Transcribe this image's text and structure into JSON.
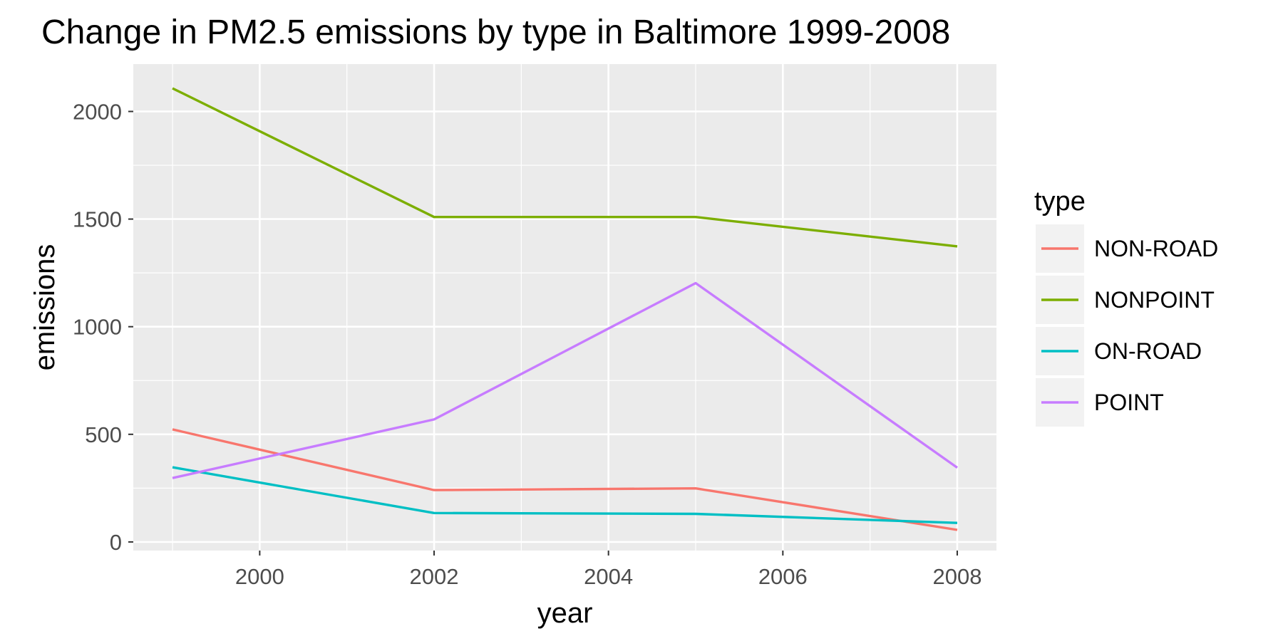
{
  "chart_data": {
    "type": "line",
    "title": "Change in PM2.5 emissions by type in Baltimore 1999-2008",
    "xlabel": "year",
    "ylabel": "emissions",
    "x": [
      1999,
      2002,
      2005,
      2008
    ],
    "xlim": [
      1998.55,
      2008.45
    ],
    "ylim": [
      -40,
      2220
    ],
    "x_ticks": [
      2000,
      2002,
      2004,
      2006,
      2008
    ],
    "y_ticks": [
      0,
      500,
      1000,
      1500,
      2000
    ],
    "grid": true,
    "legend": {
      "title": "type",
      "position": "right"
    },
    "series": [
      {
        "name": "NON-ROAD",
        "color": "#F8766D",
        "values": [
          522.9,
          240.8,
          248.9,
          55.8
        ]
      },
      {
        "name": "NONPOINT",
        "color": "#7CAE00",
        "values": [
          2107.6,
          1509.5,
          1509.5,
          1373.2
        ]
      },
      {
        "name": "ON-ROAD",
        "color": "#00BFC4",
        "values": [
          346.8,
          134.3,
          130.4,
          88.3
        ]
      },
      {
        "name": "POINT",
        "color": "#C77CFF",
        "values": [
          296.8,
          569.3,
          1202.5,
          345.0
        ]
      }
    ]
  }
}
